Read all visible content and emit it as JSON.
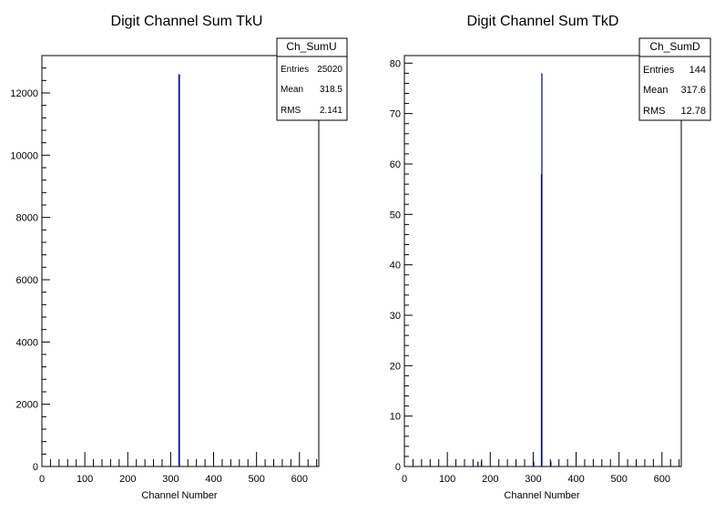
{
  "chart_data": [
    {
      "type": "bar",
      "title": "Digit Channel Sum TkU",
      "xlabel": "Channel Number",
      "ylabel": "",
      "xlim": [
        0,
        645
      ],
      "ylim": [
        0,
        13200
      ],
      "x_ticks": [
        0,
        100,
        200,
        300,
        400,
        500,
        600
      ],
      "x_tick_labels": [
        "0",
        "100",
        "200",
        "300",
        "400",
        "500",
        "600"
      ],
      "y_ticks": [
        0,
        2000,
        4000,
        6000,
        8000,
        10000,
        12000
      ],
      "y_tick_labels": [
        "0",
        "2000",
        "4000",
        "6000",
        "8000",
        "10000",
        "12000"
      ],
      "bar_color": "#000099",
      "series": [
        {
          "x": [
            318,
            319
          ],
          "values": [
            12600,
            12600
          ]
        }
      ],
      "stats": {
        "name": "Ch_SumU",
        "rows": [
          {
            "label": "Entries",
            "value": "25020"
          },
          {
            "label": "Mean",
            "value": "318.5"
          },
          {
            "label": "RMS",
            "value": "2.141"
          }
        ]
      }
    },
    {
      "type": "bar",
      "title": "Digit Channel Sum TkD",
      "xlabel": "Channel Number",
      "ylabel": "",
      "xlim": [
        0,
        645
      ],
      "ylim": [
        0,
        81.5
      ],
      "x_ticks": [
        0,
        100,
        200,
        300,
        400,
        500,
        600
      ],
      "x_tick_labels": [
        "0",
        "100",
        "200",
        "300",
        "400",
        "500",
        "600"
      ],
      "y_ticks": [
        0,
        10,
        20,
        30,
        40,
        50,
        60,
        70,
        80
      ],
      "y_tick_labels": [
        "0",
        "10",
        "20",
        "30",
        "40",
        "50",
        "60",
        "70",
        "80"
      ],
      "bar_color": "#000099",
      "series": [
        {
          "x": [
            170,
            178,
            300,
            318,
            319,
            340
          ],
          "values": [
            1,
            1,
            1,
            58,
            78,
            1
          ]
        }
      ],
      "stats": {
        "name": "Ch_SumD",
        "rows": [
          {
            "label": "Entries",
            "value": "144"
          },
          {
            "label": "Mean",
            "value": "317.6"
          },
          {
            "label": "RMS",
            "value": "12.78"
          }
        ]
      }
    }
  ]
}
